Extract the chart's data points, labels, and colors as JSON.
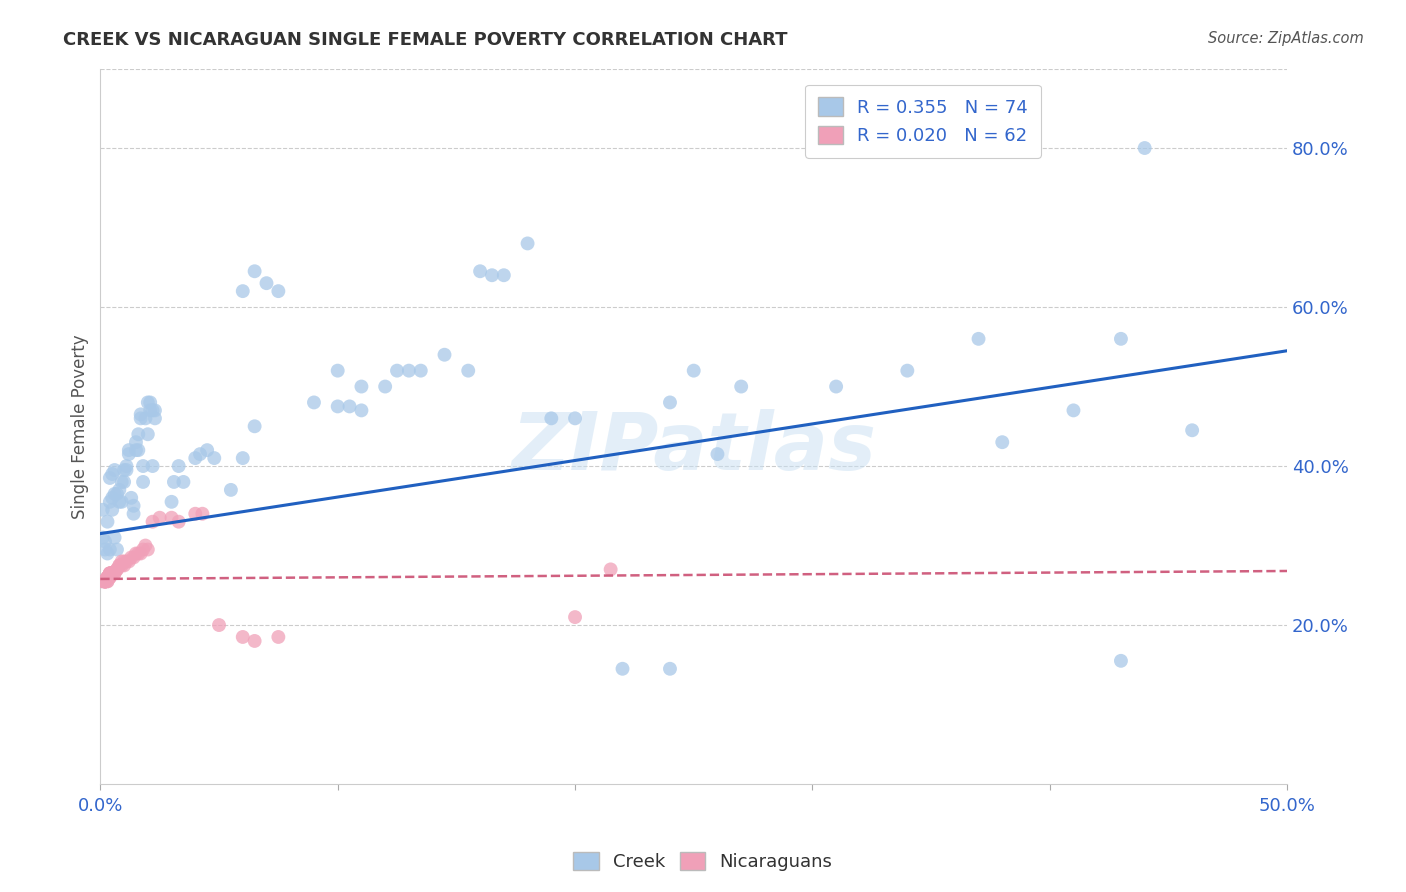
{
  "title": "CREEK VS NICARAGUAN SINGLE FEMALE POVERTY CORRELATION CHART",
  "source": "Source: ZipAtlas.com",
  "ylabel": "Single Female Poverty",
  "right_yticks": [
    "20.0%",
    "40.0%",
    "60.0%",
    "80.0%"
  ],
  "right_ytick_vals": [
    0.2,
    0.4,
    0.6,
    0.8
  ],
  "watermark": "ZIPatlas",
  "creek_color": "#a8c8e8",
  "nicaraguan_color": "#f0a0b8",
  "creek_line_color": "#2060c0",
  "nicaraguan_line_color": "#d06080",
  "xlim": [
    0.0,
    0.5
  ],
  "ylim": [
    0.0,
    0.9
  ],
  "xticks": [
    0.0,
    0.1,
    0.2,
    0.3,
    0.4,
    0.5
  ],
  "xtick_labels": [
    "0.0%",
    "",
    "",
    "",
    "",
    "50.0%"
  ],
  "creek_line_x0": 0.0,
  "creek_line_y0": 0.315,
  "creek_line_x1": 0.5,
  "creek_line_y1": 0.545,
  "nic_line_x0": 0.0,
  "nic_line_y0": 0.258,
  "nic_line_x1": 0.5,
  "nic_line_y1": 0.268,
  "creek_points": [
    [
      0.001,
      0.31
    ],
    [
      0.002,
      0.305
    ],
    [
      0.003,
      0.33
    ],
    [
      0.004,
      0.295
    ],
    [
      0.005,
      0.36
    ],
    [
      0.005,
      0.345
    ],
    [
      0.006,
      0.365
    ],
    [
      0.006,
      0.31
    ],
    [
      0.007,
      0.295
    ],
    [
      0.007,
      0.365
    ],
    [
      0.008,
      0.37
    ],
    [
      0.008,
      0.355
    ],
    [
      0.009,
      0.355
    ],
    [
      0.009,
      0.38
    ],
    [
      0.01,
      0.38
    ],
    [
      0.01,
      0.395
    ],
    [
      0.011,
      0.395
    ],
    [
      0.011,
      0.4
    ],
    [
      0.012,
      0.42
    ],
    [
      0.012,
      0.415
    ],
    [
      0.013,
      0.36
    ],
    [
      0.014,
      0.35
    ],
    [
      0.014,
      0.34
    ],
    [
      0.015,
      0.42
    ],
    [
      0.015,
      0.43
    ],
    [
      0.016,
      0.44
    ],
    [
      0.016,
      0.42
    ],
    [
      0.017,
      0.46
    ],
    [
      0.017,
      0.465
    ],
    [
      0.018,
      0.4
    ],
    [
      0.018,
      0.38
    ],
    [
      0.019,
      0.46
    ],
    [
      0.02,
      0.48
    ],
    [
      0.02,
      0.44
    ],
    [
      0.021,
      0.48
    ],
    [
      0.021,
      0.47
    ],
    [
      0.022,
      0.4
    ],
    [
      0.022,
      0.47
    ],
    [
      0.023,
      0.46
    ],
    [
      0.023,
      0.47
    ],
    [
      0.001,
      0.345
    ],
    [
      0.002,
      0.295
    ],
    [
      0.003,
      0.29
    ],
    [
      0.004,
      0.355
    ],
    [
      0.004,
      0.385
    ],
    [
      0.005,
      0.39
    ],
    [
      0.006,
      0.395
    ],
    [
      0.03,
      0.355
    ],
    [
      0.031,
      0.38
    ],
    [
      0.033,
      0.4
    ],
    [
      0.035,
      0.38
    ],
    [
      0.04,
      0.41
    ],
    [
      0.042,
      0.415
    ],
    [
      0.045,
      0.42
    ],
    [
      0.048,
      0.41
    ],
    [
      0.055,
      0.37
    ],
    [
      0.06,
      0.41
    ],
    [
      0.065,
      0.45
    ],
    [
      0.06,
      0.62
    ],
    [
      0.065,
      0.645
    ],
    [
      0.07,
      0.63
    ],
    [
      0.075,
      0.62
    ],
    [
      0.09,
      0.48
    ],
    [
      0.1,
      0.475
    ],
    [
      0.105,
      0.475
    ],
    [
      0.11,
      0.47
    ],
    [
      0.1,
      0.52
    ],
    [
      0.11,
      0.5
    ],
    [
      0.12,
      0.5
    ],
    [
      0.125,
      0.52
    ],
    [
      0.13,
      0.52
    ],
    [
      0.135,
      0.52
    ],
    [
      0.145,
      0.54
    ],
    [
      0.155,
      0.52
    ],
    [
      0.16,
      0.645
    ],
    [
      0.165,
      0.64
    ],
    [
      0.17,
      0.64
    ],
    [
      0.18,
      0.68
    ],
    [
      0.19,
      0.46
    ],
    [
      0.2,
      0.46
    ],
    [
      0.22,
      0.145
    ],
    [
      0.24,
      0.48
    ],
    [
      0.25,
      0.52
    ],
    [
      0.26,
      0.415
    ],
    [
      0.27,
      0.5
    ],
    [
      0.31,
      0.5
    ],
    [
      0.34,
      0.52
    ],
    [
      0.37,
      0.56
    ],
    [
      0.38,
      0.43
    ],
    [
      0.41,
      0.47
    ],
    [
      0.43,
      0.56
    ],
    [
      0.43,
      0.155
    ],
    [
      0.44,
      0.8
    ],
    [
      0.46,
      0.445
    ],
    [
      0.24,
      0.145
    ]
  ],
  "nicaraguan_points": [
    [
      0.001,
      0.255
    ],
    [
      0.001,
      0.255
    ],
    [
      0.002,
      0.255
    ],
    [
      0.002,
      0.255
    ],
    [
      0.002,
      0.255
    ],
    [
      0.002,
      0.255
    ],
    [
      0.002,
      0.255
    ],
    [
      0.002,
      0.255
    ],
    [
      0.002,
      0.255
    ],
    [
      0.002,
      0.255
    ],
    [
      0.002,
      0.255
    ],
    [
      0.002,
      0.255
    ],
    [
      0.003,
      0.255
    ],
    [
      0.003,
      0.255
    ],
    [
      0.003,
      0.26
    ],
    [
      0.003,
      0.26
    ],
    [
      0.003,
      0.26
    ],
    [
      0.003,
      0.26
    ],
    [
      0.004,
      0.26
    ],
    [
      0.004,
      0.26
    ],
    [
      0.004,
      0.265
    ],
    [
      0.004,
      0.265
    ],
    [
      0.004,
      0.265
    ],
    [
      0.004,
      0.265
    ],
    [
      0.005,
      0.265
    ],
    [
      0.005,
      0.265
    ],
    [
      0.005,
      0.265
    ],
    [
      0.005,
      0.265
    ],
    [
      0.005,
      0.265
    ],
    [
      0.005,
      0.265
    ],
    [
      0.006,
      0.265
    ],
    [
      0.006,
      0.265
    ],
    [
      0.007,
      0.27
    ],
    [
      0.007,
      0.27
    ],
    [
      0.008,
      0.275
    ],
    [
      0.008,
      0.275
    ],
    [
      0.009,
      0.275
    ],
    [
      0.009,
      0.28
    ],
    [
      0.01,
      0.275
    ],
    [
      0.01,
      0.28
    ],
    [
      0.011,
      0.28
    ],
    [
      0.012,
      0.28
    ],
    [
      0.013,
      0.285
    ],
    [
      0.014,
      0.285
    ],
    [
      0.015,
      0.29
    ],
    [
      0.016,
      0.29
    ],
    [
      0.017,
      0.29
    ],
    [
      0.018,
      0.295
    ],
    [
      0.019,
      0.3
    ],
    [
      0.02,
      0.295
    ],
    [
      0.022,
      0.33
    ],
    [
      0.025,
      0.335
    ],
    [
      0.03,
      0.335
    ],
    [
      0.033,
      0.33
    ],
    [
      0.04,
      0.34
    ],
    [
      0.043,
      0.34
    ],
    [
      0.05,
      0.2
    ],
    [
      0.06,
      0.185
    ],
    [
      0.065,
      0.18
    ],
    [
      0.075,
      0.185
    ],
    [
      0.2,
      0.21
    ],
    [
      0.215,
      0.27
    ]
  ]
}
